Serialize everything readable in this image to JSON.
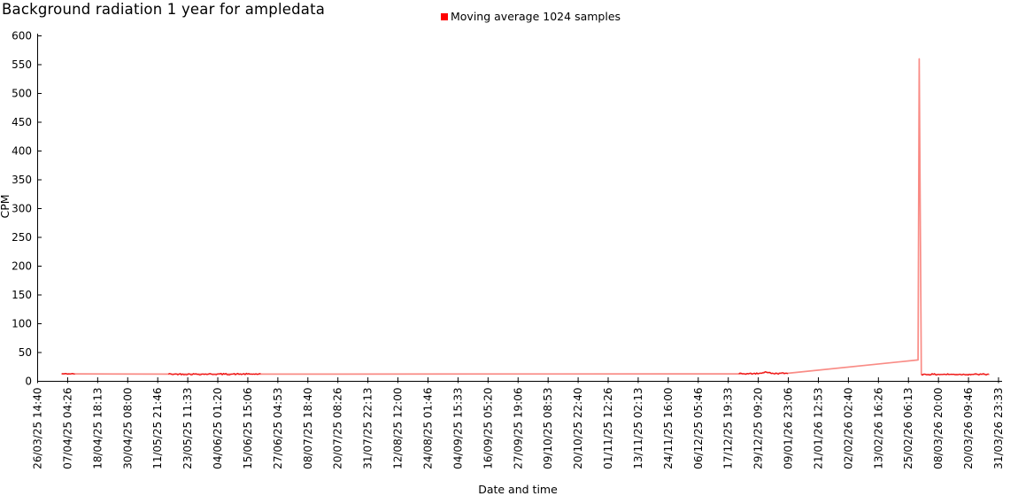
{
  "title": "Background radiation 1 year for ampledata",
  "legend": {
    "label": "Moving average 1024 samples",
    "marker_color": "#ff0000"
  },
  "chart_data": {
    "type": "line",
    "title": "Background radiation 1 year for ampledata",
    "xlabel": "Date and time",
    "ylabel": "CPM",
    "ylim": [
      0,
      600
    ],
    "ytick_step": 50,
    "grid": false,
    "legend_position": "top-center",
    "x_tick_labels": [
      "26/03/25 14:40",
      "07/04/25 04:26",
      "18/04/25 18:13",
      "30/04/25 08:00",
      "11/05/25 21:46",
      "23/05/25 11:33",
      "04/06/25 01:20",
      "15/06/25 15:06",
      "27/06/25 04:53",
      "08/07/25 18:40",
      "20/07/25 08:26",
      "31/07/25 22:13",
      "12/08/25 12:00",
      "24/08/25 01:46",
      "04/09/25 15:33",
      "16/09/25 05:20",
      "27/09/25 19:06",
      "09/10/25 08:53",
      "20/10/25 22:40",
      "01/11/25 12:26",
      "13/11/25 02:13",
      "24/11/25 16:00",
      "06/12/25 05:46",
      "17/12/25 19:33",
      "29/12/25 09:20",
      "09/01/26 23:06",
      "21/01/26 12:53",
      "02/02/26 02:40",
      "13/02/26 16:26",
      "25/02/26 06:13",
      "08/03/26 20:00",
      "20/03/26 09:46",
      "31/03/26 23:33"
    ],
    "series": [
      {
        "name": "Moving average 1024 samples",
        "color": "#ee1111",
        "soft_color": "#f98c86",
        "baseline_cpm": 13,
        "peak_cpm": 560,
        "peak_time_approx": "01/03/26",
        "pre_peak_rise_cpm": 37,
        "profile_points": [
          [
            0.8,
            13
          ],
          [
            1.25,
            13
          ],
          [
            4.35,
            12.5
          ],
          [
            7.45,
            12.5
          ],
          [
            23.35,
            13
          ],
          [
            24.05,
            13.5
          ],
          [
            24.25,
            16.5
          ],
          [
            24.45,
            13.5
          ],
          [
            25.0,
            14
          ],
          [
            29.32,
            37
          ],
          [
            29.36,
            560
          ],
          [
            29.43,
            12
          ],
          [
            31.7,
            12
          ]
        ],
        "noisy_ranges": [
          [
            0.8,
            1.25,
            1.0
          ],
          [
            4.35,
            7.45,
            1.5
          ],
          [
            23.35,
            25.0,
            1.4
          ],
          [
            29.43,
            31.7,
            1.5
          ]
        ],
        "noise_amplitude_cpm": 1.5
      }
    ]
  }
}
